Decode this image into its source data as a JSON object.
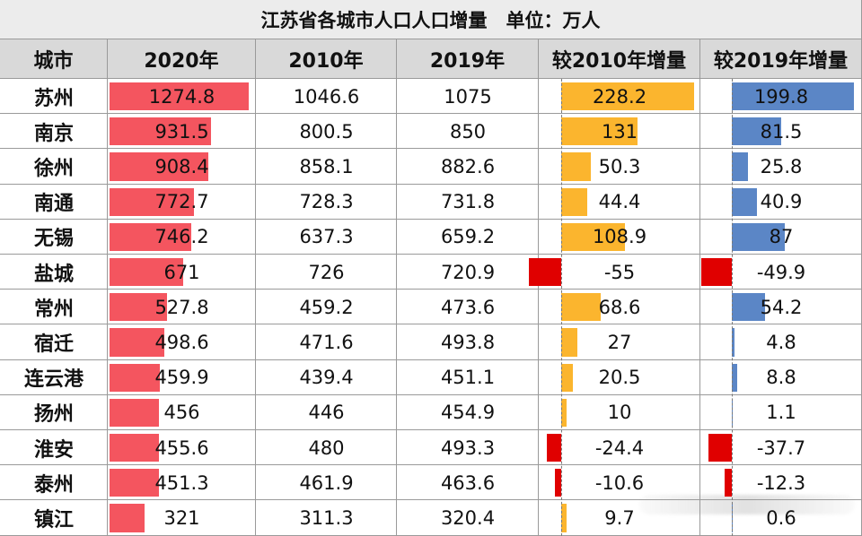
{
  "title": "江苏省各城市人口人口增量　单位：万人",
  "chart_data": {
    "type": "table",
    "columns": [
      "城市",
      "2020年",
      "2010年",
      "2019年",
      "较2010年增量",
      "较2019年增量"
    ],
    "cities": [
      "苏州",
      "南京",
      "徐州",
      "南通",
      "无锡",
      "盐城",
      "常州",
      "宿迁",
      "连云港",
      "扬州",
      "淮安",
      "泰州",
      "镇江"
    ],
    "pop_2020": [
      1274.8,
      931.5,
      908.4,
      772.7,
      746.2,
      671,
      527.8,
      498.6,
      459.9,
      456,
      455.6,
      451.3,
      321
    ],
    "pop_2010": [
      1046.6,
      800.5,
      858.1,
      728.3,
      637.3,
      726,
      459.2,
      471.6,
      439.4,
      446,
      480,
      461.9,
      311.3
    ],
    "pop_2019": [
      1075,
      850,
      882.6,
      731.8,
      659.2,
      720.9,
      473.6,
      493.8,
      451.1,
      454.9,
      493.3,
      463.6,
      320.4
    ],
    "inc_vs_2010": [
      228.2,
      131,
      50.3,
      44.4,
      108.9,
      -55,
      68.6,
      27,
      20.5,
      10,
      -24.4,
      -10.6,
      9.7
    ],
    "inc_vs_2019": [
      199.8,
      81.5,
      25.8,
      40.9,
      87,
      -49.9,
      54.2,
      4.8,
      8.8,
      1.1,
      -37.7,
      -12.3,
      0.6
    ],
    "colors": {
      "pop_2020_bar": "#f4555f",
      "inc_2010_pos": "#fbb52e",
      "inc_2010_neg": "#e00000",
      "inc_2019_pos": "#5b86c6",
      "inc_2019_neg": "#e00000",
      "header_bg": "#d9d9d9",
      "title_bg": "#ececec",
      "grid": "#9a9a9a"
    }
  }
}
